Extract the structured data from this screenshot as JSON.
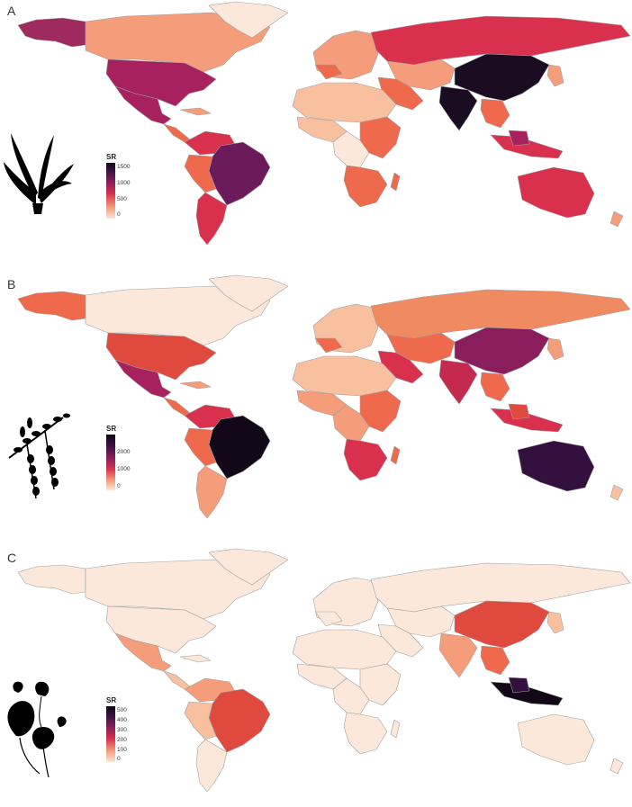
{
  "panels": [
    {
      "letter": "A",
      "legend": {
        "title": "SR",
        "ticks": [
          "1500",
          "1000",
          "500",
          "0"
        ],
        "max": 1700
      },
      "plant_icon": "monocot-plant-icon"
    },
    {
      "letter": "B",
      "legend": {
        "title": "SR",
        "ticks": [
          "2000",
          "1000",
          "0"
        ],
        "max": 2800
      },
      "plant_icon": "legume-branch-icon"
    },
    {
      "letter": "C",
      "legend": {
        "title": "SR",
        "ticks": [
          "500",
          "400",
          "300",
          "200",
          "100",
          "0"
        ],
        "max": 540
      }
    }
  ],
  "colors": {
    "scale": [
      "#fbe8da",
      "#f9c0a0",
      "#f59c7a",
      "#ef6a4c",
      "#d9304e",
      "#a6215e",
      "#6b1a5a",
      "#34103f",
      "#120818"
    ],
    "border": "#9a9a9a",
    "ocean": "#ffffff"
  }
}
